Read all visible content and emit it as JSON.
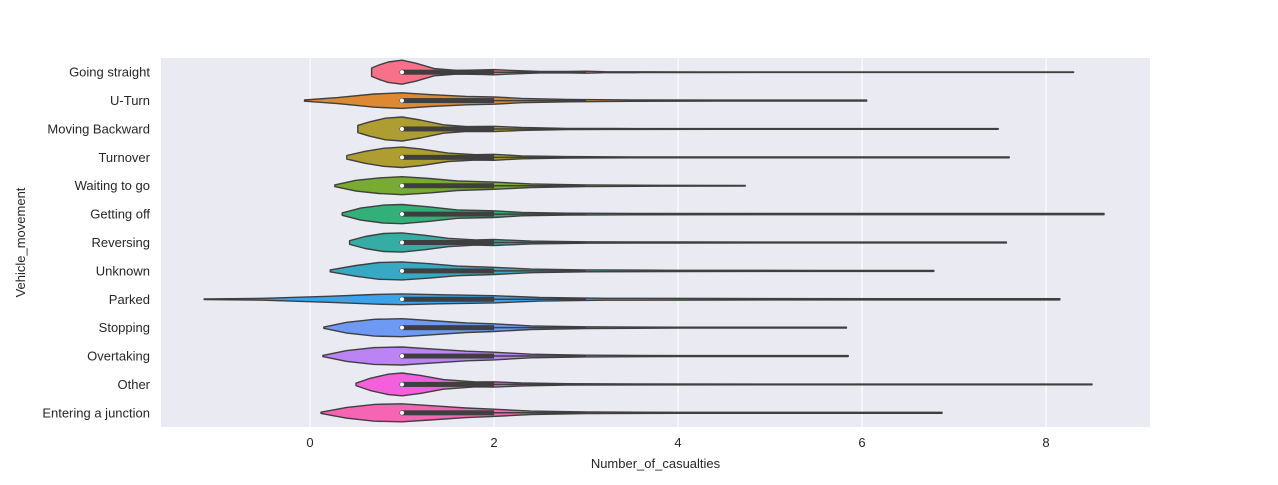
{
  "chart_data": {
    "type": "violin",
    "orientation": "horizontal",
    "title": "",
    "xlabel": "Number_of_casualties",
    "ylabel": "Vehicle_movement",
    "xlim": [
      -1.6,
      9.1
    ],
    "x_ticks": [
      0,
      2,
      4,
      6,
      8
    ],
    "grid": true,
    "background": "#eaeaf2",
    "categories": [
      {
        "name": "Going straight",
        "color": "#f77189",
        "density": [
          [
            0.67,
            0.35
          ],
          [
            0.75,
            0.6
          ],
          [
            0.85,
            0.85
          ],
          [
            1.0,
            1.0
          ],
          [
            1.15,
            0.75
          ],
          [
            1.35,
            0.3
          ],
          [
            1.6,
            0.15
          ],
          [
            1.85,
            0.18
          ],
          [
            2.0,
            0.22
          ],
          [
            2.2,
            0.14
          ],
          [
            2.5,
            0.06
          ],
          [
            2.8,
            0.06
          ],
          [
            3.0,
            0.08
          ],
          [
            3.2,
            0.04
          ],
          [
            3.6,
            0.03
          ],
          [
            4.2,
            0.025
          ],
          [
            5.5,
            0.02
          ],
          [
            7.0,
            0.02
          ],
          [
            8.3,
            0.02
          ]
        ],
        "min": 1,
        "q1": 1,
        "median": 1,
        "q3": 2,
        "whisker_high": 3
      },
      {
        "name": "U-Turn",
        "color": "#dc8932",
        "density": [
          [
            -0.06,
            0.05
          ],
          [
            0.3,
            0.25
          ],
          [
            0.7,
            0.55
          ],
          [
            1.0,
            0.65
          ],
          [
            1.3,
            0.5
          ],
          [
            1.7,
            0.35
          ],
          [
            2.0,
            0.3
          ],
          [
            2.3,
            0.18
          ],
          [
            2.8,
            0.1
          ],
          [
            3.5,
            0.06
          ],
          [
            4.5,
            0.04
          ],
          [
            6.05,
            0.04
          ]
        ],
        "min": 1,
        "q1": 1,
        "median": 1,
        "q3": 2,
        "whisker_high": 3
      },
      {
        "name": "Moving Backward",
        "color": "#ae9d31",
        "density": [
          [
            0.52,
            0.3
          ],
          [
            0.65,
            0.6
          ],
          [
            0.82,
            0.9
          ],
          [
            1.0,
            1.0
          ],
          [
            1.2,
            0.75
          ],
          [
            1.45,
            0.35
          ],
          [
            1.7,
            0.2
          ],
          [
            2.0,
            0.22
          ],
          [
            2.3,
            0.12
          ],
          [
            2.8,
            0.05
          ],
          [
            3.3,
            0.035
          ],
          [
            4.5,
            0.03
          ],
          [
            6.0,
            0.03
          ],
          [
            7.48,
            0.03
          ]
        ],
        "min": 1,
        "q1": 1,
        "median": 1,
        "q3": 2,
        "whisker_high": 3
      },
      {
        "name": "Turnover",
        "color": "#ae9d31",
        "density": [
          [
            0.4,
            0.15
          ],
          [
            0.6,
            0.5
          ],
          [
            0.8,
            0.75
          ],
          [
            1.0,
            0.85
          ],
          [
            1.2,
            0.7
          ],
          [
            1.5,
            0.35
          ],
          [
            1.8,
            0.22
          ],
          [
            2.0,
            0.25
          ],
          [
            2.3,
            0.12
          ],
          [
            2.8,
            0.06
          ],
          [
            3.5,
            0.04
          ],
          [
            5.0,
            0.04
          ],
          [
            7.6,
            0.04
          ]
        ],
        "min": 1,
        "q1": 1,
        "median": 1,
        "q3": 2,
        "whisker_high": 3
      },
      {
        "name": "Waiting to go",
        "color": "#77ab31",
        "density": [
          [
            0.27,
            0.07
          ],
          [
            0.5,
            0.45
          ],
          [
            0.75,
            0.65
          ],
          [
            1.0,
            0.75
          ],
          [
            1.3,
            0.6
          ],
          [
            1.6,
            0.4
          ],
          [
            2.0,
            0.3
          ],
          [
            2.4,
            0.15
          ],
          [
            3.0,
            0.07
          ],
          [
            3.8,
            0.04
          ],
          [
            4.73,
            0.03
          ]
        ],
        "min": 1,
        "q1": 1,
        "median": 1,
        "q3": 2,
        "whisker_high": 3
      },
      {
        "name": "Getting off",
        "color": "#33b07a",
        "density": [
          [
            0.35,
            0.1
          ],
          [
            0.55,
            0.5
          ],
          [
            0.8,
            0.75
          ],
          [
            1.0,
            0.8
          ],
          [
            1.3,
            0.6
          ],
          [
            1.6,
            0.35
          ],
          [
            2.0,
            0.28
          ],
          [
            2.3,
            0.14
          ],
          [
            2.8,
            0.08
          ],
          [
            3.5,
            0.06
          ],
          [
            5.0,
            0.05
          ],
          [
            7.0,
            0.05
          ],
          [
            8.63,
            0.05
          ]
        ],
        "min": 1,
        "q1": 1,
        "median": 1,
        "q3": 2,
        "whisker_high": 3
      },
      {
        "name": "Reversing",
        "color": "#36ada4",
        "density": [
          [
            0.43,
            0.15
          ],
          [
            0.6,
            0.5
          ],
          [
            0.8,
            0.75
          ],
          [
            1.0,
            0.8
          ],
          [
            1.25,
            0.6
          ],
          [
            1.5,
            0.35
          ],
          [
            1.8,
            0.22
          ],
          [
            2.0,
            0.25
          ],
          [
            2.4,
            0.12
          ],
          [
            3.0,
            0.06
          ],
          [
            4.0,
            0.04
          ],
          [
            5.5,
            0.03
          ],
          [
            7.57,
            0.03
          ]
        ],
        "min": 1,
        "q1": 1,
        "median": 1,
        "q3": 2,
        "whisker_high": 3
      },
      {
        "name": "Unknown",
        "color": "#38a9c5",
        "density": [
          [
            0.22,
            0.08
          ],
          [
            0.5,
            0.45
          ],
          [
            0.75,
            0.7
          ],
          [
            1.0,
            0.75
          ],
          [
            1.3,
            0.6
          ],
          [
            1.6,
            0.4
          ],
          [
            2.0,
            0.3
          ],
          [
            2.4,
            0.15
          ],
          [
            3.0,
            0.08
          ],
          [
            4.0,
            0.05
          ],
          [
            5.5,
            0.04
          ],
          [
            6.78,
            0.04
          ]
        ],
        "min": 1,
        "q1": 1,
        "median": 1,
        "q3": 2,
        "whisker_high": 3
      },
      {
        "name": "Parked",
        "color": "#3ba3ec",
        "density": [
          [
            -1.15,
            0.02
          ],
          [
            -0.5,
            0.08
          ],
          [
            0.2,
            0.25
          ],
          [
            0.7,
            0.4
          ],
          [
            1.0,
            0.45
          ],
          [
            1.4,
            0.38
          ],
          [
            2.0,
            0.3
          ],
          [
            2.5,
            0.15
          ],
          [
            3.2,
            0.08
          ],
          [
            4.5,
            0.06
          ],
          [
            6.5,
            0.05
          ],
          [
            8.15,
            0.05
          ]
        ],
        "min": 1,
        "q1": 1,
        "median": 1,
        "q3": 2,
        "whisker_high": 3
      },
      {
        "name": "Stopping",
        "color": "#6e9af4",
        "density": [
          [
            0.15,
            0.05
          ],
          [
            0.4,
            0.45
          ],
          [
            0.7,
            0.7
          ],
          [
            1.0,
            0.75
          ],
          [
            1.3,
            0.6
          ],
          [
            1.7,
            0.4
          ],
          [
            2.0,
            0.32
          ],
          [
            2.4,
            0.15
          ],
          [
            3.0,
            0.07
          ],
          [
            4.0,
            0.04
          ],
          [
            5.83,
            0.04
          ]
        ],
        "min": 1,
        "q1": 1,
        "median": 1,
        "q3": 2,
        "whisker_high": 3
      },
      {
        "name": "Overtaking",
        "color": "#bb83f4",
        "density": [
          [
            0.14,
            0.05
          ],
          [
            0.4,
            0.45
          ],
          [
            0.7,
            0.7
          ],
          [
            1.0,
            0.75
          ],
          [
            1.3,
            0.6
          ],
          [
            1.7,
            0.4
          ],
          [
            2.0,
            0.32
          ],
          [
            2.4,
            0.15
          ],
          [
            3.0,
            0.07
          ],
          [
            4.0,
            0.04
          ],
          [
            5.85,
            0.04
          ]
        ],
        "min": 1,
        "q1": 1,
        "median": 1,
        "q3": 2,
        "whisker_high": 3
      },
      {
        "name": "Other",
        "color": "#f45fdc",
        "density": [
          [
            0.5,
            0.1
          ],
          [
            0.65,
            0.5
          ],
          [
            0.85,
            0.85
          ],
          [
            1.0,
            0.95
          ],
          [
            1.2,
            0.75
          ],
          [
            1.45,
            0.4
          ],
          [
            1.8,
            0.2
          ],
          [
            2.0,
            0.22
          ],
          [
            2.3,
            0.12
          ],
          [
            2.8,
            0.06
          ],
          [
            3.5,
            0.04
          ],
          [
            5.3,
            0.03
          ],
          [
            7.0,
            0.03
          ],
          [
            8.5,
            0.03
          ]
        ],
        "min": 1,
        "q1": 1,
        "median": 1,
        "q3": 2,
        "whisker_high": 3
      },
      {
        "name": "Entering a junction",
        "color": "#f565b3",
        "density": [
          [
            0.12,
            0.05
          ],
          [
            0.4,
            0.45
          ],
          [
            0.7,
            0.7
          ],
          [
            1.0,
            0.75
          ],
          [
            1.3,
            0.6
          ],
          [
            1.7,
            0.4
          ],
          [
            2.0,
            0.3
          ],
          [
            2.4,
            0.14
          ],
          [
            3.0,
            0.07
          ],
          [
            4.0,
            0.04
          ],
          [
            5.5,
            0.04
          ],
          [
            6.87,
            0.04
          ]
        ],
        "min": 1,
        "q1": 1,
        "median": 1,
        "q3": 2,
        "whisker_high": 3
      }
    ]
  }
}
